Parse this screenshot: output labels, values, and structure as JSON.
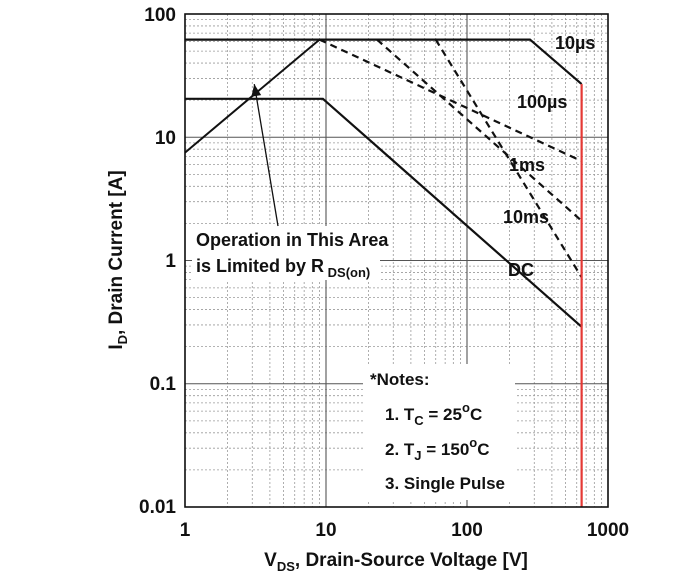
{
  "chart_data": {
    "type": "line",
    "x_scale": "log",
    "y_scale": "log",
    "xlim": [
      1,
      1000
    ],
    "ylim": [
      0.01,
      100
    ],
    "grid": true,
    "x_ticks": [
      "1",
      "10",
      "100",
      "1000"
    ],
    "y_ticks": [
      "0.01",
      "0.1",
      "1",
      "10",
      "100"
    ],
    "xlabel": {
      "main": "V",
      "sub": "DS",
      "rest": ", Drain-Source Voltage [V]"
    },
    "ylabel": {
      "main": "I",
      "sub": "D",
      "rest": ", Drain Current [A]"
    },
    "rds_limit": {
      "points": [
        [
          1,
          7.5
        ],
        [
          9,
          62
        ]
      ]
    },
    "series": [
      {
        "name": "10µs",
        "style": "solid",
        "points": [
          [
            1,
            62
          ],
          [
            280,
            62
          ],
          [
            650,
            27
          ]
        ]
      },
      {
        "name": "100µs",
        "style": "dashed",
        "points": [
          [
            9,
            62
          ],
          [
            650,
            6.4
          ]
        ]
      },
      {
        "name": "1ms",
        "style": "dashed",
        "points": [
          [
            23,
            62
          ],
          [
            650,
            2.1
          ]
        ]
      },
      {
        "name": "10ms",
        "style": "dashed",
        "points": [
          [
            60,
            62
          ],
          [
            650,
            0.73
          ]
        ]
      },
      {
        "name": "DC",
        "style": "solid",
        "points": [
          [
            1,
            20.5
          ],
          [
            9.5,
            20.5
          ],
          [
            650,
            0.29
          ]
        ]
      }
    ],
    "vds_limit": {
      "x": 650,
      "color": "#e53935"
    },
    "annotation": {
      "line1": "Operation in This Area",
      "line2_main": "is Limited by R",
      "line2_sub": " DS(on)",
      "arrow_target": [
        3.1,
        27
      ]
    },
    "notes": {
      "title": "*Notes:",
      "n1_main": "1. T",
      "n1_sub": "C",
      "n1_rest": " = 25",
      "n1_sup": "o",
      "n1_end": "C",
      "n2_main": "2. T",
      "n2_sub": "J",
      "n2_rest": " = 150",
      "n2_sup": "o",
      "n2_end": "C",
      "n3": "3. Single Pulse"
    }
  }
}
